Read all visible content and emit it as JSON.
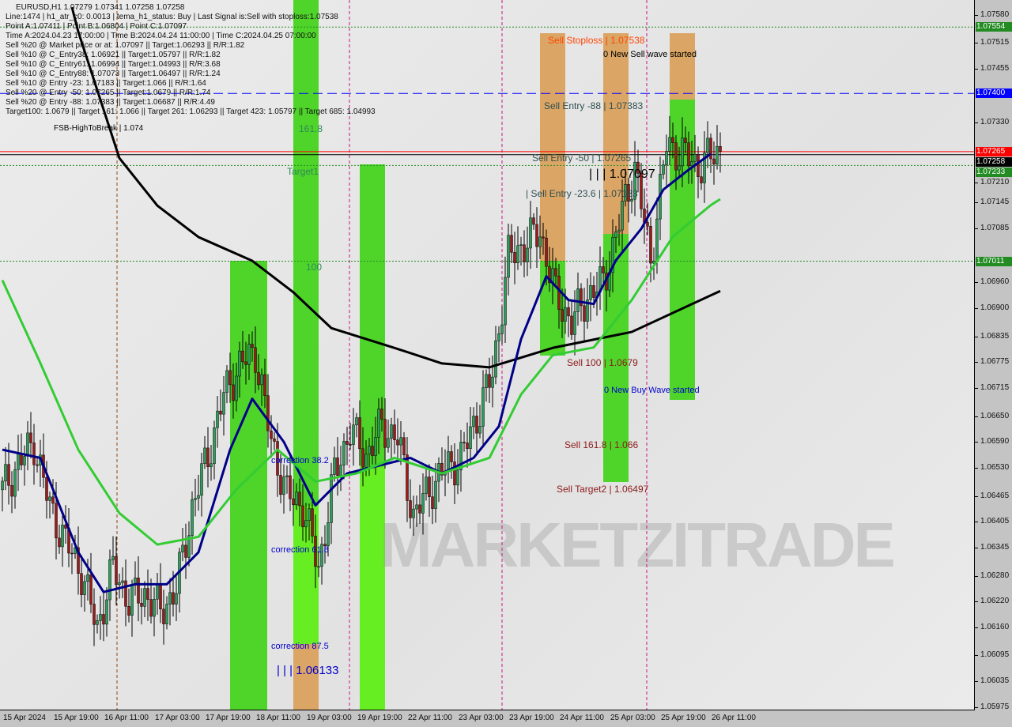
{
  "header": {
    "title": "EURUSD,H1  1.07279 1.07341 1.07258 1.07258",
    "lines": [
      "Line:1474 | h1_atr_c0: 0.0013 | tema_h1_status: Buy | Last Signal is:Sell with stoploss:1.07538",
      "Point A:1.07411 | Point B:1.06804 | Point C:1.07097",
      "Time A:2024.04.23 17:00:00 | Time B:2024.04.24 11:00:00 | Time C:2024.04.25 07:00:00",
      "Sell %20 @ Market price or at: 1.07097 || Target:1.06293 || R/R:1.82",
      "Sell %10 @ C_Entry38: 1.06921 || Target:1.05797 || R/R:1.82",
      "Sell %10 @ C_Entry61: 1.06994 || Target:1.04993 || R/R:3.68",
      "Sell %10 @ C_Entry88: 1.07073 || Target:1.06497 || R/R:1.24",
      "Sell %10 @ Entry -23: 1.07183 || Target:1.066 || R/R:1.64",
      "Sell %20 @ Entry -50: 1.07265 || Target:1.0679 || R/R:1.74",
      "Sell %20 @ Entry -88: 1.07383 || Target:1.06687 || R/R:4.49",
      "Target100: 1.0679 || Target 161: 1.066 || Target 261: 1.06293 || Target 423: 1.05797 || Target 685: 1.04993"
    ]
  },
  "watermark": "MARKETZITRADE",
  "annotations": {
    "sell_stoploss": "Sell Stoploss | 1.07538",
    "new_sell_wave": "0 New Sell wave started",
    "sell_entry_88": "Sell Entry -88 | 1.07383",
    "sell_entry_50": "Sell Entry -50 | 1.07265",
    "point_c": "| | | 1.07097",
    "sell_entry_236": "| Sell Entry -23.6 | 1.07183",
    "sell_100": "Sell 100 | 1.0679",
    "new_buy_wave": "0 New Buy Wave started",
    "sell_1618": "Sell 161.8 | 1.066",
    "sell_target2": "Sell Target2 | 1.06497",
    "fib_1618": "161.8",
    "target1": "Target1",
    "fib_100": "100",
    "correction_382": "correction 38.2",
    "correction_618": "correction 61.8",
    "correction_875": "correction 87.5",
    "low_level": "| | | 1.06133",
    "fsb": "FSB-HighToBreak | 1.074"
  },
  "chart_data": {
    "type": "candlestick",
    "symbol": "EURUSD",
    "timeframe": "H1",
    "ylim": [
      1.05975,
      1.0758
    ],
    "price_ticks": [
      "1.07580",
      "1.07515",
      "1.07455",
      "1.07330",
      "1.07210",
      "1.07145",
      "1.07085",
      "1.06960",
      "1.06900",
      "1.06835",
      "1.06775",
      "1.06715",
      "1.06650",
      "1.06590",
      "1.06530",
      "1.06465",
      "1.06405",
      "1.06345",
      "1.06280",
      "1.06220",
      "1.06160",
      "1.06095",
      "1.06035",
      "1.05975"
    ],
    "time_ticks": [
      "15 Apr 2024",
      "15 Apr 19:00",
      "16 Apr 11:00",
      "17 Apr 03:00",
      "17 Apr 19:00",
      "18 Apr 11:00",
      "19 Apr 03:00",
      "19 Apr 19:00",
      "22 Apr 11:00",
      "23 Apr 03:00",
      "23 Apr 19:00",
      "24 Apr 11:00",
      "25 Apr 03:00",
      "25 Apr 19:00",
      "26 Apr 11:00"
    ],
    "bars_per_time_tick": 16,
    "close_every_5_bars": [
      1.06481,
      1.0654,
      1.06591,
      1.0644,
      1.0636,
      1.0629,
      1.0616,
      1.063,
      1.06224,
      1.0624,
      1.062,
      1.0625,
      1.0644,
      1.0656,
      1.067,
      1.0677,
      1.068,
      1.06591,
      1.0647,
      1.06444,
      1.063,
      1.06517,
      1.0662,
      1.0656,
      1.0663,
      1.066,
      1.0642,
      1.06481,
      1.0653,
      1.06554,
      1.0665,
      1.0675,
      1.0702,
      1.0705,
      1.0708,
      1.0693,
      1.0687,
      1.0693,
      1.0696,
      1.071,
      1.0723,
      1.07012,
      1.0728,
      1.0726,
      1.07232,
      1.07258
    ],
    "indicators": [
      {
        "color": "#000000",
        "points": [
          [
            22,
            1.076
          ],
          [
            24,
            1.07543
          ],
          [
            37,
            1.0725
          ],
          [
            49,
            1.0714
          ],
          [
            62,
            1.07067
          ],
          [
            79,
            1.07012
          ],
          [
            92,
            1.06939
          ],
          [
            104,
            1.06856
          ],
          [
            124,
            1.0681
          ],
          [
            139,
            1.06774
          ],
          [
            154,
            1.06765
          ],
          [
            174,
            1.0681
          ],
          [
            199,
            1.06847
          ],
          [
            227,
            1.06942
          ]
        ]
      },
      {
        "color": "#000088",
        "points": [
          [
            0,
            1.06574
          ],
          [
            12,
            1.06555
          ],
          [
            24,
            1.06336
          ],
          [
            32,
            1.06244
          ],
          [
            42,
            1.06262
          ],
          [
            52,
            1.06262
          ],
          [
            62,
            1.06336
          ],
          [
            72,
            1.06574
          ],
          [
            79,
            1.06692
          ],
          [
            89,
            1.06592
          ],
          [
            99,
            1.06445
          ],
          [
            109,
            1.06519
          ],
          [
            119,
            1.06537
          ],
          [
            129,
            1.06555
          ],
          [
            139,
            1.06519
          ],
          [
            149,
            1.06555
          ],
          [
            157,
            1.06628
          ],
          [
            164,
            1.0683
          ],
          [
            172,
            1.06976
          ],
          [
            179,
            1.06921
          ],
          [
            187,
            1.06912
          ],
          [
            194,
            1.07013
          ],
          [
            202,
            1.07086
          ],
          [
            209,
            1.07177
          ],
          [
            217,
            1.07223
          ],
          [
            224,
            1.0726
          ]
        ]
      },
      {
        "color": "#33cc33",
        "points": [
          [
            0,
            1.06967
          ],
          [
            12,
            1.06775
          ],
          [
            24,
            1.06574
          ],
          [
            37,
            1.06427
          ],
          [
            49,
            1.06354
          ],
          [
            62,
            1.06372
          ],
          [
            74,
            1.06482
          ],
          [
            87,
            1.06574
          ],
          [
            99,
            1.065
          ],
          [
            112,
            1.06519
          ],
          [
            124,
            1.06555
          ],
          [
            139,
            1.06519
          ],
          [
            154,
            1.06555
          ],
          [
            164,
            1.06702
          ],
          [
            174,
            1.06793
          ],
          [
            187,
            1.06811
          ],
          [
            199,
            1.06921
          ],
          [
            212,
            1.07068
          ],
          [
            224,
            1.07141
          ],
          [
            227,
            1.07155
          ]
        ]
      }
    ],
    "levels": [
      {
        "price": 1.07554,
        "label": "1.07554",
        "color": "#228b22",
        "style": "dotted"
      },
      {
        "price": 1.074,
        "label": "1.07400",
        "color": "#0000ff",
        "style": "dashed"
      },
      {
        "price": 1.07265,
        "label": "1.07265",
        "color": "#ff0000",
        "style": "solid"
      },
      {
        "price": 1.07258,
        "label": "1.07258",
        "color": "#000000",
        "style": "solid"
      },
      {
        "price": 1.07233,
        "label": "1.07233",
        "color": "#228b22",
        "style": "dotted"
      },
      {
        "price": 1.07011,
        "label": "1.07011",
        "color": "#228b22",
        "style": "dotted"
      }
    ]
  }
}
